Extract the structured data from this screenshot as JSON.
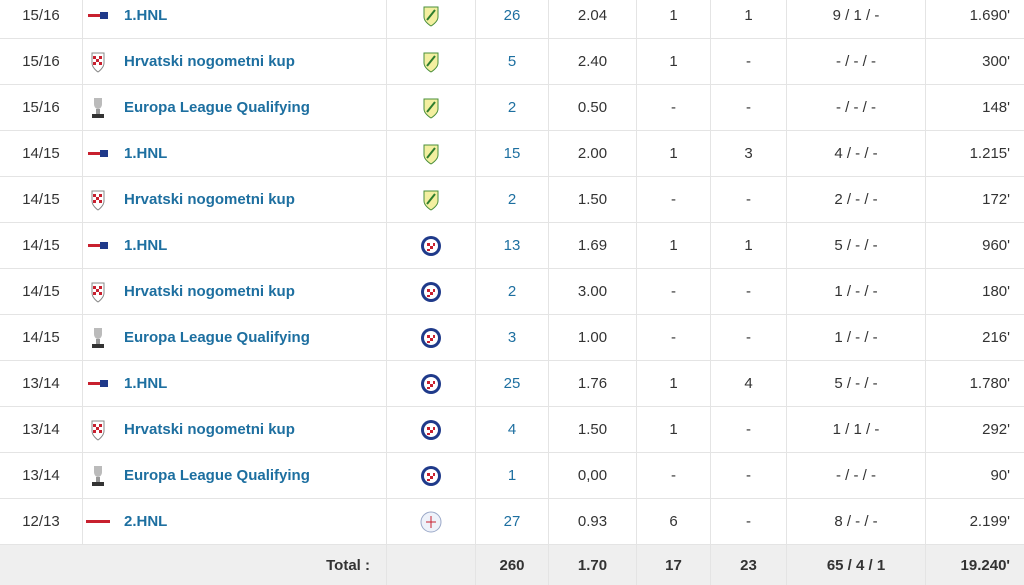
{
  "rows": [
    {
      "season": "15/16",
      "competition": "1.HNL",
      "apps": "26",
      "ppg": "2.04",
      "goals": "1",
      "assists": "1",
      "cards": "9 / 1 / -",
      "minutes": "1.690'"
    },
    {
      "season": "15/16",
      "competition": "Hrvatski nogometni kup",
      "apps": "5",
      "ppg": "2.40",
      "goals": "1",
      "assists": "-",
      "cards": "- / - / -",
      "minutes": "300'"
    },
    {
      "season": "15/16",
      "competition": "Europa League Qualifying",
      "apps": "2",
      "ppg": "0.50",
      "goals": "-",
      "assists": "-",
      "cards": "- / - / -",
      "minutes": "148'"
    },
    {
      "season": "14/15",
      "competition": "1.HNL",
      "apps": "15",
      "ppg": "2.00",
      "goals": "1",
      "assists": "3",
      "cards": "4 / - / -",
      "minutes": "1.215'"
    },
    {
      "season": "14/15",
      "competition": "Hrvatski nogometni kup",
      "apps": "2",
      "ppg": "1.50",
      "goals": "-",
      "assists": "-",
      "cards": "2 / - / -",
      "minutes": "172'"
    },
    {
      "season": "14/15",
      "competition": "1.HNL",
      "apps": "13",
      "ppg": "1.69",
      "goals": "1",
      "assists": "1",
      "cards": "5 / - / -",
      "minutes": "960'"
    },
    {
      "season": "14/15",
      "competition": "Hrvatski nogometni kup",
      "apps": "2",
      "ppg": "3.00",
      "goals": "-",
      "assists": "-",
      "cards": "1 / - / -",
      "minutes": "180'"
    },
    {
      "season": "14/15",
      "competition": "Europa League Qualifying",
      "apps": "3",
      "ppg": "1.00",
      "goals": "-",
      "assists": "-",
      "cards": "1 / - / -",
      "minutes": "216'"
    },
    {
      "season": "13/14",
      "competition": "1.HNL",
      "apps": "25",
      "ppg": "1.76",
      "goals": "1",
      "assists": "4",
      "cards": "5 / - / -",
      "minutes": "1.780'"
    },
    {
      "season": "13/14",
      "competition": "Hrvatski nogometni kup",
      "apps": "4",
      "ppg": "1.50",
      "goals": "1",
      "assists": "-",
      "cards": "1 / 1 / -",
      "minutes": "292'"
    },
    {
      "season": "13/14",
      "competition": "Europa League Qualifying",
      "apps": "1",
      "ppg": "0,00",
      "goals": "-",
      "assists": "-",
      "cards": "- / - / -",
      "minutes": "90'"
    },
    {
      "season": "12/13",
      "competition": "2.HNL",
      "apps": "27",
      "ppg": "0.93",
      "goals": "6",
      "assists": "-",
      "cards": "8 / - / -",
      "minutes": "2.199'"
    }
  ],
  "total": {
    "label": "Total :",
    "apps": "260",
    "ppg": "1.70",
    "goals": "17",
    "assists": "23",
    "cards": "65 / 4 / 1",
    "minutes": "19.240'"
  }
}
